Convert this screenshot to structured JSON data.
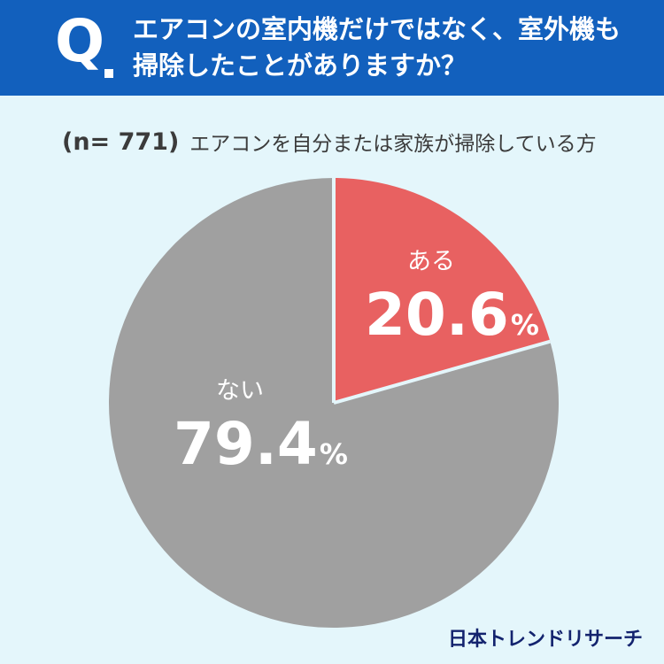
{
  "header": {
    "q_mark": "Q",
    "question_line1": "エアコンの室内機だけではなく、室外機も",
    "question_line2": "掃除したことがありますか？"
  },
  "subtitle": {
    "sample_size": "(n= 771)",
    "note": "エアコンを自分または家族が掃除している方"
  },
  "chart_data": {
    "type": "pie",
    "categories": [
      "ある",
      "ない"
    ],
    "values": [
      20.6,
      79.4
    ],
    "unit": "%",
    "colors": [
      "#e86161",
      "#a0a0a0"
    ],
    "start": "12 o'clock, clockwise"
  },
  "labels": {
    "yes_name": "ある",
    "yes_value": "20.6",
    "no_name": "ない",
    "no_value": "79.4",
    "unit": "%"
  },
  "brand": "日本トレンドリサーチ",
  "colors": {
    "header_bg": "#1260bd",
    "background": "#e4f6fb",
    "yes": "#e86161",
    "no": "#a0a0a0"
  }
}
